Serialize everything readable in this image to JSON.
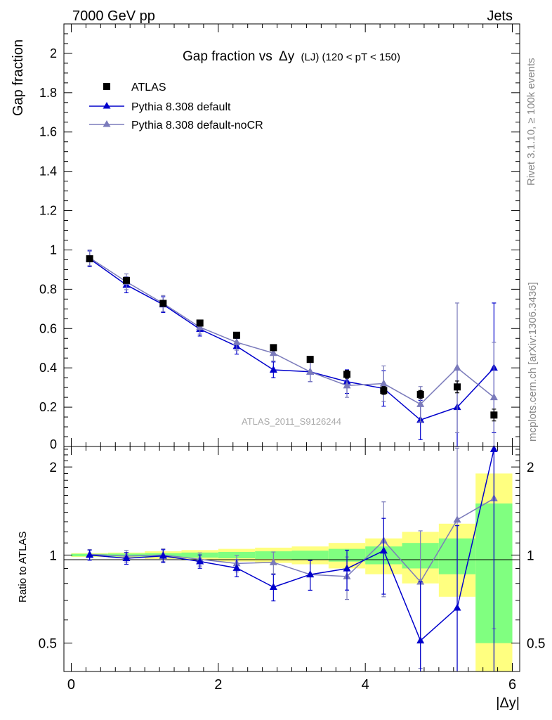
{
  "header": {
    "left": "7000 GeV pp",
    "right": "Jets"
  },
  "side_labels": {
    "rivet": "Rivet 3.1.10, ≥ 100k events",
    "mcplots": "mcplots.cern.ch [arXiv:1306.3436]"
  },
  "watermark": "ATLAS_2011_S9126244",
  "colors": {
    "data": "#000000",
    "pythia_default": "#0000cc",
    "pythia_nocr": "#7b7bbb",
    "band_inner": "#80ff80",
    "band_outer": "#ffff80"
  },
  "chart_data": [
    {
      "type": "scatter",
      "title": "Gap fraction vs Δy (LJ) (120 < pT < 150)",
      "title_parts": {
        "main": "Gap fraction vs",
        "delta": "Δy",
        "sub": "(LJ) (120 < pT < 150)"
      },
      "xlabel": "",
      "ylabel": "Gap fraction",
      "xlim": [
        -0.1,
        6.1
      ],
      "ylim": [
        0,
        2.15
      ],
      "yticks": [
        0.2,
        0.4,
        0.6,
        0.8,
        1,
        1.2,
        1.4,
        1.6,
        1.8,
        2
      ],
      "ytick_labels": [
        "0.2",
        "0.4",
        "0.6",
        "0.8",
        "1",
        "1.2",
        "1.4",
        "1.6",
        "1.8",
        "2"
      ],
      "y_partial_label": "0",
      "legend_position": "top-left",
      "x": [
        0.25,
        0.75,
        1.25,
        1.75,
        2.25,
        2.75,
        3.25,
        3.75,
        4.25,
        4.75,
        5.25,
        5.75
      ],
      "series": [
        {
          "name": "ATLAS",
          "marker": "square",
          "connected": false,
          "values": [
            0.955,
            0.845,
            0.728,
            0.628,
            0.566,
            0.503,
            0.443,
            0.367,
            0.285,
            0.265,
            0.303,
            0.16
          ],
          "errors": [
            0.01,
            0.01,
            0.01,
            0.01,
            0.012,
            0.015,
            0.015,
            0.02,
            0.02,
            0.02,
            0.03,
            0.03
          ]
        },
        {
          "name": "Pythia 8.308 default",
          "marker": "triangle",
          "connected": true,
          "values": [
            0.955,
            0.822,
            0.722,
            0.597,
            0.51,
            0.39,
            0.38,
            0.33,
            0.295,
            0.135,
            0.2,
            0.4
          ],
          "errors": [
            0.04,
            0.04,
            0.04,
            0.035,
            0.04,
            0.04,
            0.05,
            0.06,
            0.09,
            0.1,
            0.2,
            0.33
          ]
        },
        {
          "name": "Pythia 8.308 default-noCR",
          "marker": "triangle",
          "connected": true,
          "values": [
            0.96,
            0.838,
            0.728,
            0.607,
            0.53,
            0.475,
            0.38,
            0.31,
            0.32,
            0.215,
            0.4,
            0.25
          ],
          "errors": [
            0.04,
            0.04,
            0.04,
            0.035,
            0.04,
            0.04,
            0.05,
            0.06,
            0.09,
            0.09,
            0.33,
            0.28
          ]
        }
      ]
    },
    {
      "type": "scatter",
      "title": "",
      "xlabel": "|Δy|",
      "ylabel": "Ratio to ATLAS",
      "y_scale": "log",
      "xlim": [
        -0.1,
        6.1
      ],
      "ylim": [
        0.4,
        2.35
      ],
      "xticks": [
        0,
        2,
        4,
        6
      ],
      "xtick_labels": [
        "0",
        "2",
        "4",
        "6"
      ],
      "yticks": [
        0.5,
        1,
        2
      ],
      "ytick_labels": [
        "0.5",
        "1",
        "2"
      ],
      "x": [
        0.25,
        0.75,
        1.25,
        1.75,
        2.25,
        2.75,
        3.25,
        3.75,
        4.25,
        4.75,
        5.25,
        5.75
      ],
      "bands": {
        "x_edges": [
          0,
          0.5,
          1,
          1.5,
          2,
          2.5,
          3,
          3.5,
          4,
          4.5,
          5,
          5.5,
          6
        ],
        "inner_half_width": [
          0.01,
          0.012,
          0.015,
          0.02,
          0.025,
          0.03,
          0.035,
          0.05,
          0.07,
          0.1,
          0.14,
          0.5
        ],
        "outer_half_width": [
          0.015,
          0.02,
          0.03,
          0.04,
          0.05,
          0.06,
          0.07,
          0.1,
          0.14,
          0.2,
          0.28,
          0.9
        ]
      },
      "series": [
        {
          "name": "Pythia 8.308 default",
          "values": [
            1.0,
            0.975,
            0.993,
            0.951,
            0.903,
            0.777,
            0.858,
            0.899,
            1.035,
            0.51,
            0.66,
            2.3
          ],
          "errors": [
            0.04,
            0.045,
            0.05,
            0.05,
            0.06,
            0.08,
            0.1,
            0.14,
            0.3,
            0.3,
            0.6,
            2.0
          ]
        },
        {
          "name": "Pythia 8.308 default-noCR",
          "values": [
            1.005,
            0.992,
            1.0,
            0.967,
            0.936,
            0.944,
            0.858,
            0.845,
            1.12,
            0.81,
            1.32,
            1.56
          ],
          "errors": [
            0.04,
            0.045,
            0.05,
            0.05,
            0.06,
            0.08,
            0.1,
            0.14,
            0.4,
            0.4,
            1.0,
            1.0
          ]
        }
      ]
    }
  ]
}
